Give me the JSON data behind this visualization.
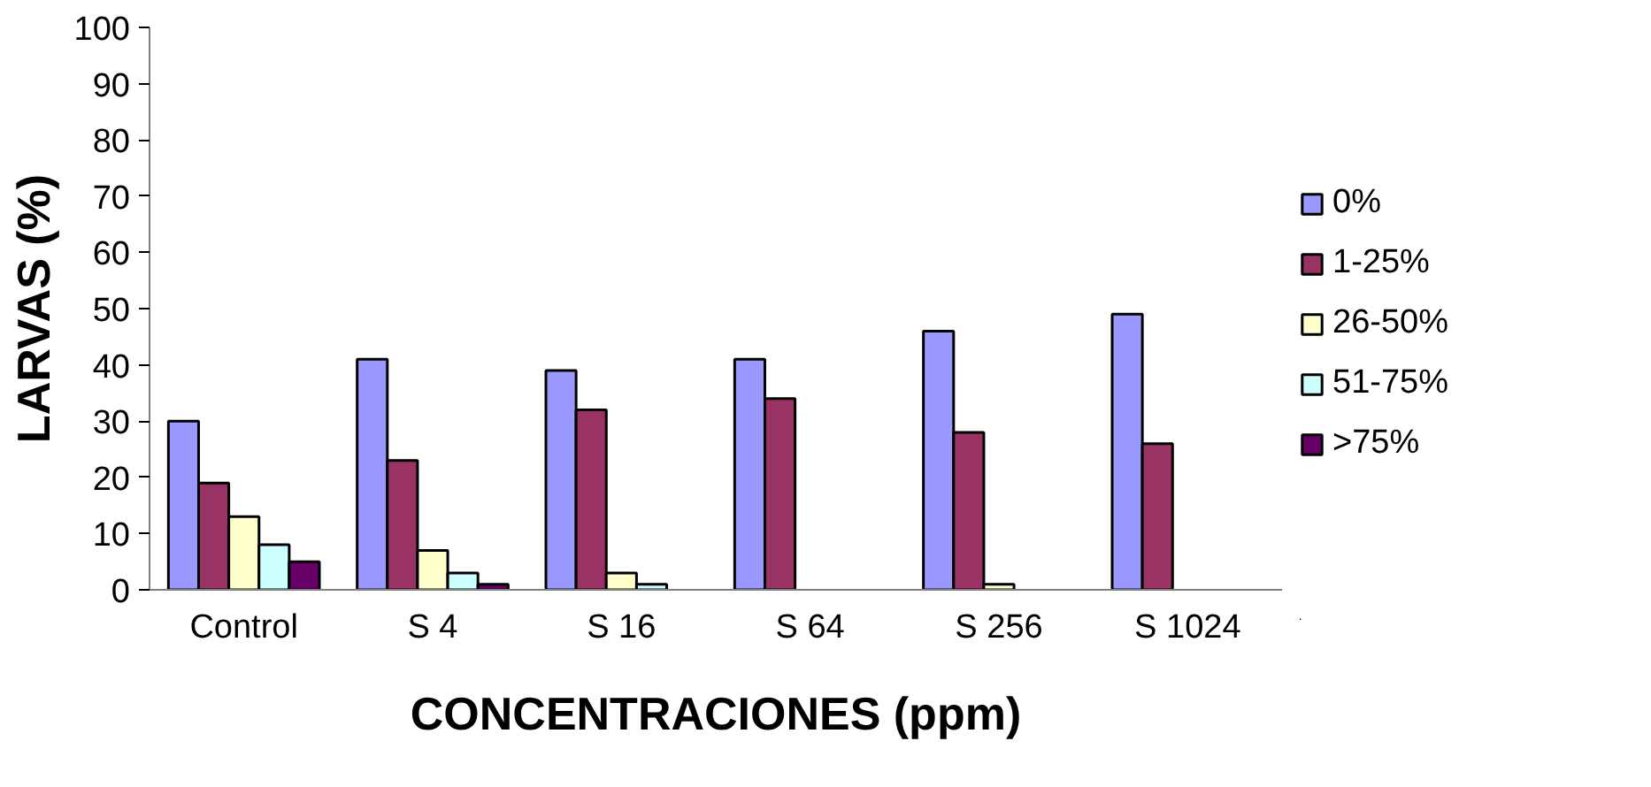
{
  "chart_data": {
    "type": "bar",
    "xlabel": "CONCENTRACIONES (ppm)",
    "ylabel": "LARVAS (%)",
    "categories": [
      "Control",
      "S 4",
      "S 16",
      "S 64",
      "S 256",
      "S 1024"
    ],
    "series": [
      {
        "name": "0%",
        "color": "#9999ff",
        "values": [
          30,
          41,
          39,
          41,
          46,
          49
        ]
      },
      {
        "name": "1-25%",
        "color": "#993366",
        "values": [
          19,
          23,
          32,
          34,
          28,
          26
        ]
      },
      {
        "name": "26-50%",
        "color": "#ffffcc",
        "values": [
          13,
          7,
          3,
          null,
          1,
          null
        ]
      },
      {
        "name": "51-75%",
        "color": "#ccffff",
        "values": [
          8,
          3,
          1,
          null,
          null,
          null
        ]
      },
      {
        "name": ">75%",
        "color": "#660066",
        "values": [
          5,
          1,
          null,
          null,
          null,
          null
        ]
      }
    ],
    "ylim": [
      0,
      100
    ],
    "yticks": [
      0,
      10,
      20,
      30,
      40,
      50,
      60,
      70,
      80,
      90,
      100
    ],
    "grid": false,
    "legend": "right"
  }
}
